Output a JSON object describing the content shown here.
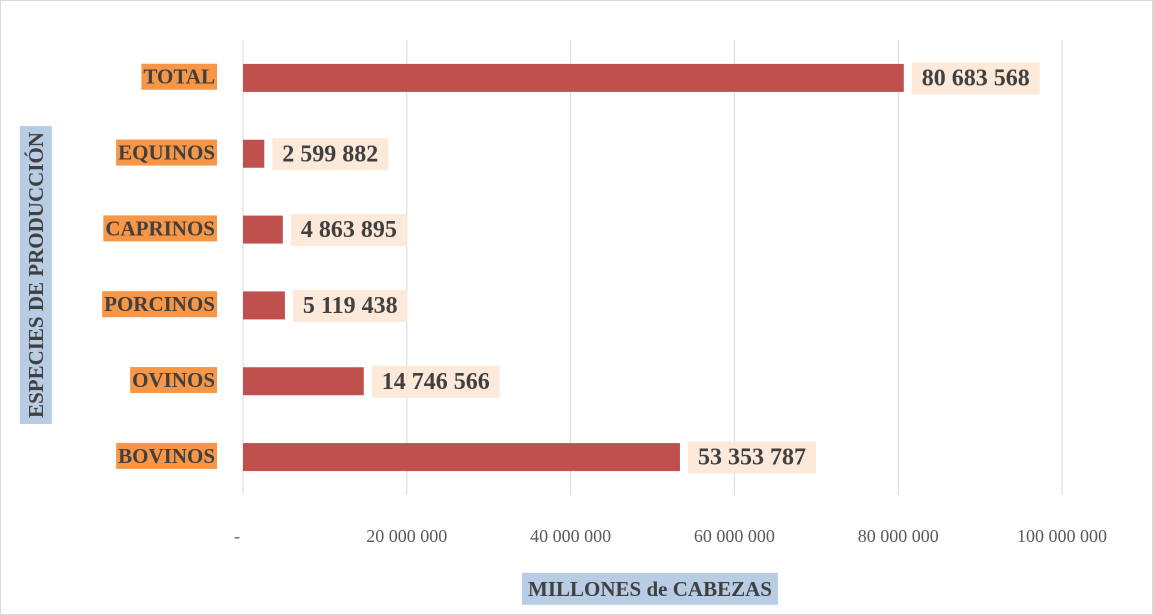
{
  "chart_data": {
    "type": "bar",
    "orientation": "horizontal",
    "categories": [
      "TOTAL",
      "EQUINOS",
      "CAPRINOS",
      "PORCINOS",
      "OVINOS",
      "BOVINOS"
    ],
    "values": [
      80683568,
      2599882,
      4863895,
      5119438,
      14746566,
      53353787
    ],
    "value_labels": [
      "80 683 568",
      "2 599 882",
      "4 863 895",
      "5 119 438",
      "14 746 566",
      "53 353 787"
    ],
    "color": "#c0504d",
    "xlim": [
      0,
      100000000
    ],
    "xticks": [
      {
        "value": 0,
        "label": "-"
      },
      {
        "value": 20000000,
        "label": "20 000 000"
      },
      {
        "value": 40000000,
        "label": "40 000 000"
      },
      {
        "value": 60000000,
        "label": "60 000 000"
      },
      {
        "value": 80000000,
        "label": "80 000 000"
      },
      {
        "value": 100000000,
        "label": "100 000 000"
      }
    ],
    "grid": true,
    "xlabel": "MILLONES de CABEZAS",
    "ylabel": "ESPECIES DE PRODUCCIÓN"
  }
}
